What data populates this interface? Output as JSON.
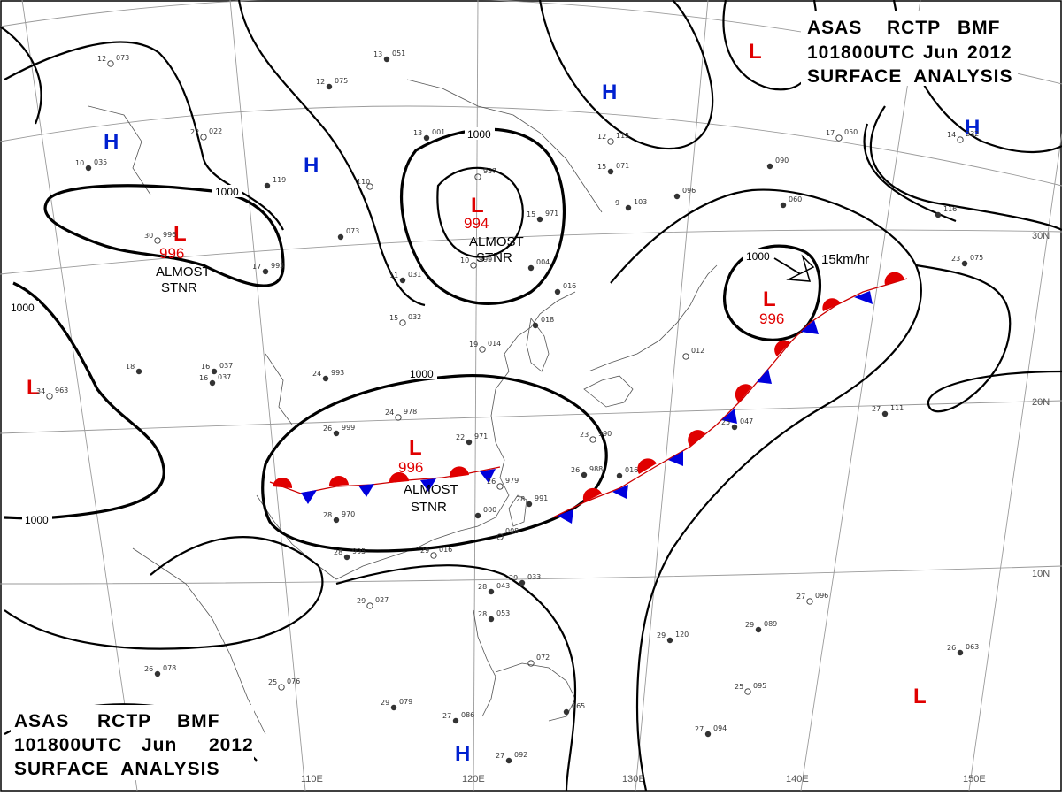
{
  "header_top": {
    "line1_parts": [
      "ASAS",
      "RCTP",
      "BMF"
    ],
    "line2_parts": [
      "101800UTC",
      "Jun",
      "2012"
    ],
    "line3": "SURFACE  ANALYSIS"
  },
  "header_bottom": {
    "line1_parts": [
      "ASAS",
      "RCTP",
      "BMF"
    ],
    "line2_parts": [
      "101800UTC",
      "Jun",
      "2012"
    ],
    "line3": "SURFACE  ANALYSIS"
  },
  "longitude_labels": [
    "110E",
    "120E",
    "130E",
    "140E",
    "150E"
  ],
  "latitude_labels": [
    "30N",
    "20N",
    "10N"
  ],
  "isobar_labels": [
    "1000",
    "1000",
    "1000",
    "1000",
    "1000",
    "1000",
    "1000"
  ],
  "lows": [
    {
      "symbol": "L",
      "pressure": "994",
      "note_line1": "ALMOST",
      "note_line2": "STNR"
    },
    {
      "symbol": "L",
      "pressure": "996",
      "note_line1": "ALMOST",
      "note_line2": "STNR"
    },
    {
      "symbol": "L",
      "pressure": "996",
      "note_line1": "ALMOST",
      "note_line2": "STNR"
    },
    {
      "symbol": "L",
      "pressure": "996",
      "note_line1": "",
      "note_line2": ""
    },
    {
      "symbol": "L",
      "pressure": "",
      "note_line1": "",
      "note_line2": ""
    },
    {
      "symbol": "L",
      "pressure": "",
      "note_line1": "",
      "note_line2": ""
    },
    {
      "symbol": "L",
      "pressure": "",
      "note_line1": "",
      "note_line2": ""
    }
  ],
  "highs": [
    "H",
    "H",
    "H",
    "H",
    "H"
  ],
  "motion_label": "15km/hr",
  "colors": {
    "low": "#e00000",
    "high": "#0020d0",
    "warm_front": "#e00000",
    "cold_front": "#0000dd",
    "isobar": "#000000",
    "graticule": "#9a9a9a"
  },
  "stations": [
    {
      "temp": "12",
      "press": "073"
    },
    {
      "temp": "12",
      "press": "075"
    },
    {
      "temp": "13",
      "press": "051"
    },
    {
      "temp": "22",
      "press": "022"
    },
    {
      "temp": "10",
      "press": "035"
    },
    {
      "temp": "13",
      "press": "001"
    },
    {
      "temp": "",
      "press": "937"
    },
    {
      "temp": "15",
      "press": "971"
    },
    {
      "temp": "15",
      "press": "071"
    },
    {
      "temp": "12",
      "press": "115"
    },
    {
      "temp": "9",
      "press": "103"
    },
    {
      "temp": "",
      "press": "096"
    },
    {
      "temp": "17",
      "press": "050"
    },
    {
      "temp": "",
      "press": "090"
    },
    {
      "temp": "",
      "press": "060"
    },
    {
      "temp": "14",
      "press": "232"
    },
    {
      "temp": "",
      "press": "116"
    },
    {
      "temp": "23",
      "press": "075"
    },
    {
      "temp": "10",
      "press": "999"
    },
    {
      "temp": "",
      "press": "004"
    },
    {
      "temp": "11",
      "press": "031"
    },
    {
      "temp": "15",
      "press": "032"
    },
    {
      "temp": "",
      "press": "073"
    },
    {
      "temp": "",
      "press": "119"
    },
    {
      "temp": "110",
      "press": ""
    },
    {
      "temp": "24",
      "press": "993"
    },
    {
      "temp": "16",
      "press": "037"
    },
    {
      "temp": "19",
      "press": "014"
    },
    {
      "temp": "",
      "press": "016"
    },
    {
      "temp": "",
      "press": "018"
    },
    {
      "temp": "24",
      "press": "978"
    },
    {
      "temp": "26",
      "press": "999"
    },
    {
      "temp": "22",
      "press": "971"
    },
    {
      "temp": "23",
      "press": "990"
    },
    {
      "temp": "26",
      "press": "988"
    },
    {
      "temp": "",
      "press": "016"
    },
    {
      "temp": "26",
      "press": "979"
    },
    {
      "temp": "28",
      "press": "991"
    },
    {
      "temp": "",
      "press": "000"
    },
    {
      "temp": "",
      "press": "008"
    },
    {
      "temp": "28",
      "press": "970"
    },
    {
      "temp": "28",
      "press": "995"
    },
    {
      "temp": "29",
      "press": "016"
    },
    {
      "temp": "28",
      "press": "043"
    },
    {
      "temp": "29",
      "press": "033"
    },
    {
      "temp": "29",
      "press": "027"
    },
    {
      "temp": "28",
      "press": "053"
    },
    {
      "temp": "26",
      "press": "078"
    },
    {
      "temp": "25",
      "press": "076"
    },
    {
      "temp": "29",
      "press": "079"
    },
    {
      "temp": "27",
      "press": "086"
    },
    {
      "temp": "",
      "press": "072"
    },
    {
      "temp": "",
      "press": "065"
    },
    {
      "temp": "27",
      "press": "092"
    },
    {
      "temp": "",
      "press": "012"
    },
    {
      "temp": "25",
      "press": "047"
    },
    {
      "temp": "27",
      "press": "111"
    },
    {
      "temp": "27",
      "press": "096"
    },
    {
      "temp": "29",
      "press": "120"
    },
    {
      "temp": "29",
      "press": "089"
    },
    {
      "temp": "25",
      "press": "095"
    },
    {
      "temp": "27",
      "press": "094"
    },
    {
      "temp": "26",
      "press": "063"
    },
    {
      "temp": "34",
      "press": "963"
    },
    {
      "temp": "16",
      "press": "037"
    },
    {
      "temp": "18",
      "press": ""
    },
    {
      "temp": "30",
      "press": "996"
    },
    {
      "temp": "17",
      "press": "993"
    }
  ]
}
